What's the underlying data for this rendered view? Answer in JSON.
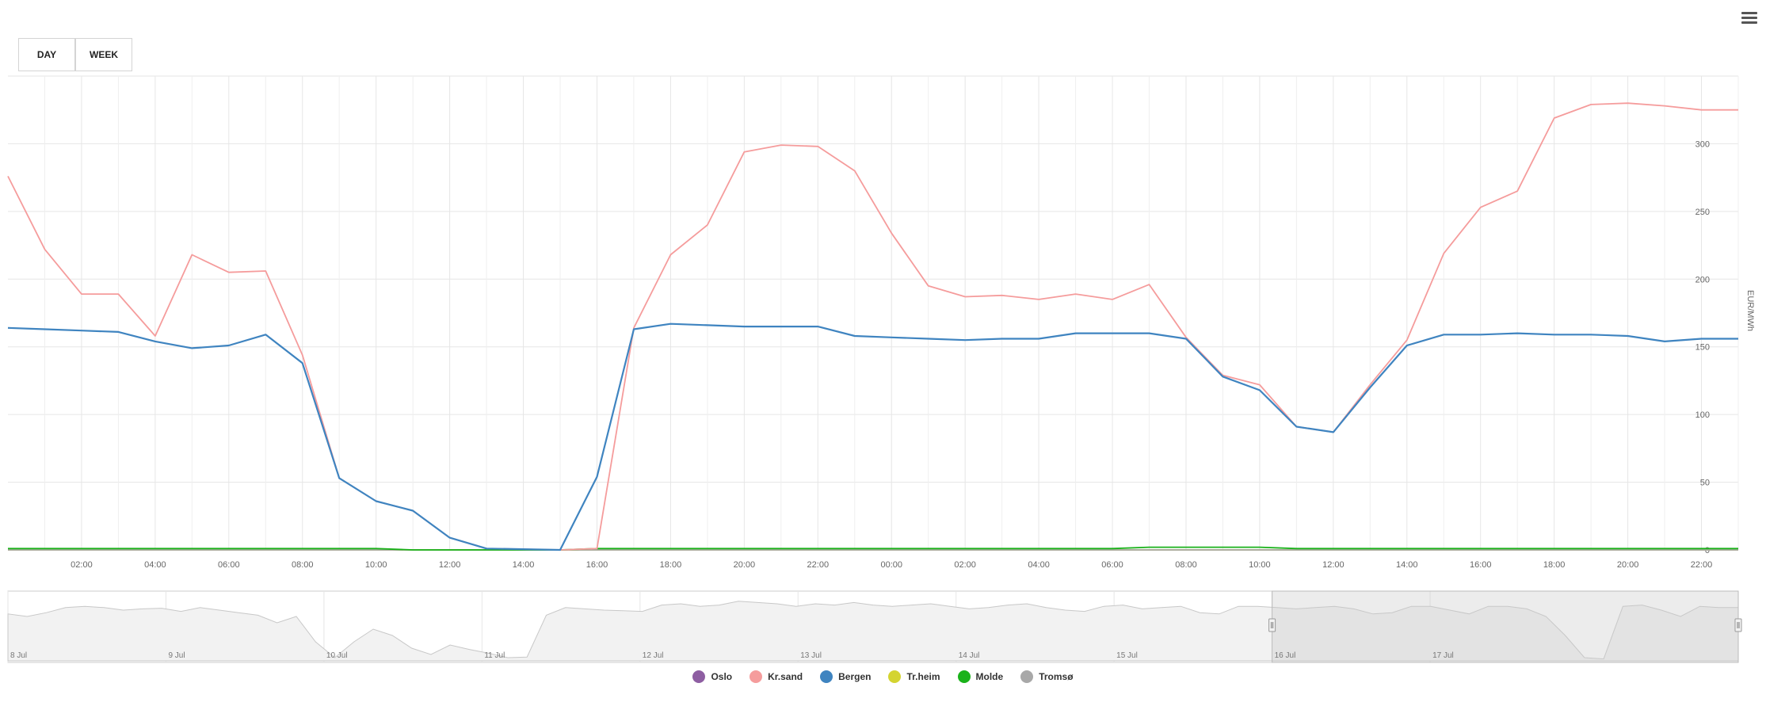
{
  "buttons": {
    "day_label": "DAY",
    "week_label": "WEEK"
  },
  "menu": {
    "icon": "hamburger-menu-icon"
  },
  "chart_data": {
    "type": "line",
    "title": "",
    "ylabel": "EUR/MWh",
    "ylim": [
      0,
      350
    ],
    "yticks": [
      0,
      50,
      100,
      150,
      200,
      250,
      300
    ],
    "y_axis_side": "right",
    "grid": true,
    "x": [
      0,
      1,
      2,
      3,
      4,
      5,
      6,
      7,
      8,
      9,
      10,
      11,
      12,
      13,
      14,
      15,
      16,
      17,
      18,
      19,
      20,
      21,
      22,
      23,
      24,
      25,
      26,
      27,
      28,
      29,
      30,
      31,
      32,
      33,
      34,
      35,
      36,
      37,
      38,
      39,
      40,
      41,
      42,
      43,
      44,
      45,
      46,
      47
    ],
    "xticks": [
      {
        "at": 2,
        "label": "02:00"
      },
      {
        "at": 4,
        "label": "04:00"
      },
      {
        "at": 6,
        "label": "06:00"
      },
      {
        "at": 8,
        "label": "08:00"
      },
      {
        "at": 10,
        "label": "10:00"
      },
      {
        "at": 12,
        "label": "12:00"
      },
      {
        "at": 14,
        "label": "14:00"
      },
      {
        "at": 16,
        "label": "16:00"
      },
      {
        "at": 18,
        "label": "18:00"
      },
      {
        "at": 20,
        "label": "20:00"
      },
      {
        "at": 22,
        "label": "22:00"
      },
      {
        "at": 24,
        "label": "00:00"
      },
      {
        "at": 26,
        "label": "02:00"
      },
      {
        "at": 28,
        "label": "04:00"
      },
      {
        "at": 30,
        "label": "06:00"
      },
      {
        "at": 32,
        "label": "08:00"
      },
      {
        "at": 34,
        "label": "10:00"
      },
      {
        "at": 36,
        "label": "12:00"
      },
      {
        "at": 38,
        "label": "14:00"
      },
      {
        "at": 40,
        "label": "16:00"
      },
      {
        "at": 42,
        "label": "18:00"
      },
      {
        "at": 44,
        "label": "20:00"
      },
      {
        "at": 46,
        "label": "22:00"
      }
    ],
    "series": [
      {
        "name": "Oslo",
        "color": "#8e5ea2",
        "values": [
          0,
          0,
          0,
          0,
          0,
          0,
          0,
          0,
          0,
          0,
          0,
          0,
          0,
          0,
          0,
          0,
          0,
          0,
          0,
          0,
          0,
          0,
          0,
          0,
          0,
          0,
          0,
          0,
          0,
          0,
          0,
          0,
          0,
          0,
          0,
          0,
          0,
          0,
          0,
          0,
          0,
          0,
          0,
          0,
          0,
          0,
          0,
          0
        ]
      },
      {
        "name": "Kr.sand",
        "color": "#f59c9c",
        "values": [
          276,
          222,
          189,
          189,
          158,
          218,
          205,
          206,
          144,
          53,
          36,
          29,
          9,
          1,
          0.5,
          0,
          1,
          164,
          218,
          240,
          294,
          299,
          298,
          280,
          234,
          195,
          187,
          188,
          185,
          189,
          185,
          196,
          157,
          129,
          122,
          91,
          87,
          122,
          155,
          219,
          253,
          265,
          319,
          329,
          330,
          328,
          325,
          325
        ]
      },
      {
        "name": "Bergen",
        "color": "#3f84c0",
        "values": [
          164,
          163,
          162,
          161,
          154,
          149,
          151,
          159,
          138,
          53,
          36,
          29,
          9,
          1,
          0.5,
          0,
          54,
          163,
          167,
          166,
          165,
          165,
          165,
          158,
          157,
          156,
          155,
          156,
          156,
          160,
          160,
          160,
          156,
          128,
          118,
          91,
          87,
          120,
          151,
          159,
          159,
          160,
          159,
          159,
          158,
          154,
          156,
          156
        ]
      },
      {
        "name": "Tr.heim",
        "color": "#d4d431",
        "values": [
          0,
          0,
          0,
          0,
          0,
          0,
          0,
          0,
          0,
          0,
          0,
          0,
          0,
          0,
          0,
          0,
          0,
          0,
          0,
          0,
          0,
          0,
          0,
          0,
          0,
          0,
          0,
          0,
          0,
          0,
          0,
          0,
          0,
          0,
          0,
          0,
          0,
          0,
          0,
          0,
          0,
          0,
          0,
          0,
          0,
          0,
          0,
          0
        ]
      },
      {
        "name": "Molde",
        "color": "#1ab21a",
        "values": [
          1,
          1,
          1,
          1,
          1,
          1,
          1,
          1,
          1,
          1,
          1,
          0,
          0,
          0,
          0,
          0,
          1,
          1,
          1,
          1,
          1,
          1,
          1,
          1,
          1,
          1,
          1,
          1,
          1,
          1,
          1,
          2,
          2,
          2,
          2,
          1,
          1,
          1,
          1,
          1,
          1,
          1,
          1,
          1,
          1,
          1,
          1,
          1
        ]
      },
      {
        "name": "Tromsø",
        "color": "#a8a8a8",
        "values": [
          0,
          0,
          0,
          0,
          0,
          0,
          0,
          0,
          0,
          0,
          0,
          0,
          0,
          0,
          0,
          0,
          0,
          0,
          0,
          0,
          0,
          0,
          0,
          0,
          0,
          0,
          0,
          0,
          0,
          0,
          0,
          0,
          0,
          0,
          0,
          0,
          0,
          0,
          0,
          0,
          0,
          0,
          0,
          0,
          0,
          0,
          0,
          0
        ]
      }
    ],
    "navigator": {
      "labels": [
        "8 Jul",
        "9 Jul",
        "10 Jul",
        "11 Jul",
        "12 Jul",
        "13 Jul",
        "14 Jul",
        "15 Jul",
        "16 Jul",
        "17 Jul"
      ],
      "label_at": [
        0,
        1,
        2,
        3,
        4,
        5,
        6,
        7,
        8,
        9
      ],
      "values": [
        0.74,
        0.7,
        0.76,
        0.84,
        0.86,
        0.84,
        0.8,
        0.82,
        0.83,
        0.78,
        0.84,
        0.8,
        0.76,
        0.72,
        0.6,
        0.7,
        0.3,
        0.05,
        0.3,
        0.5,
        0.4,
        0.2,
        0.1,
        0.25,
        0.18,
        0.12,
        0.05,
        0.06,
        0.72,
        0.84,
        0.82,
        0.8,
        0.79,
        0.78,
        0.88,
        0.9,
        0.86,
        0.88,
        0.94,
        0.92,
        0.9,
        0.86,
        0.9,
        0.88,
        0.92,
        0.88,
        0.86,
        0.88,
        0.9,
        0.86,
        0.82,
        0.84,
        0.88,
        0.9,
        0.84,
        0.8,
        0.78,
        0.86,
        0.88,
        0.82,
        0.84,
        0.86,
        0.76,
        0.74,
        0.86,
        0.86,
        0.84,
        0.82,
        0.84,
        0.86,
        0.82,
        0.74,
        0.76,
        0.86,
        0.86,
        0.8,
        0.74,
        0.86,
        0.86,
        0.82,
        0.7,
        0.4,
        0.05,
        0.03,
        0.86,
        0.88,
        0.8,
        0.7,
        0.86,
        0.84,
        0.84
      ],
      "selected_range": [
        8.0,
        10.0
      ]
    }
  }
}
